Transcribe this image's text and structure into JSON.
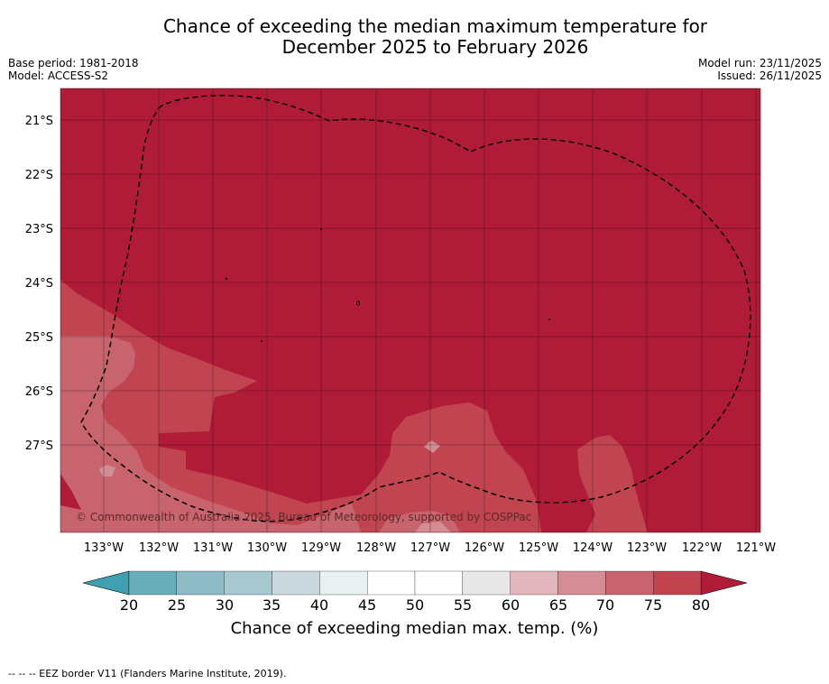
{
  "title_line1": "Chance of exceeding the median maximum temperature for",
  "title_line2": "December 2025 to February 2026",
  "base_period": "Base period: 1981-2018",
  "model": "Model: ACCESS-S2",
  "model_run": "Model run: 23/11/2025",
  "issued": "Issued: 26/11/2025",
  "copyright": "© Commonwealth of Australia 2025, Bureau of Meteorology, supported by COSPPac",
  "footer": "-- -- -- EEZ border V11 (Flanders Marine Institute, 2019).",
  "colorbar_label": "Chance of exceeding median max. temp. (%)",
  "map": {
    "lon_labels": [
      "133°W",
      "132°W",
      "131°W",
      "130°W",
      "129°W",
      "128°W",
      "127°W",
      "126°W",
      "125°W",
      "124°W",
      "123°W",
      "122°W",
      "121°W"
    ],
    "lat_labels": [
      "21°S",
      "22°S",
      "23°S",
      "24°S",
      "25°S",
      "26°S",
      "27°S"
    ]
  },
  "colorbar": {
    "ticks": [
      "20",
      "25",
      "30",
      "35",
      "40",
      "45",
      "50",
      "55",
      "60",
      "65",
      "70",
      "75",
      "80"
    ],
    "colors": [
      "#6aaebc",
      "#8cbac5",
      "#a8c8cf",
      "#c9d9de",
      "#e9f0f2",
      "#ffffff",
      "#ffffff",
      "#e8e8e8",
      "#e2b6bd",
      "#d48c95",
      "#c9646e",
      "#c0444f"
    ],
    "under_color": "#3fa0b2",
    "over_color": "#b01c38"
  },
  "colors": {
    "c80": "#b01c38",
    "c75": "#c04550",
    "c70": "#c8646e",
    "c65": "#d48c95",
    "c60": "#e2b6bd"
  }
}
